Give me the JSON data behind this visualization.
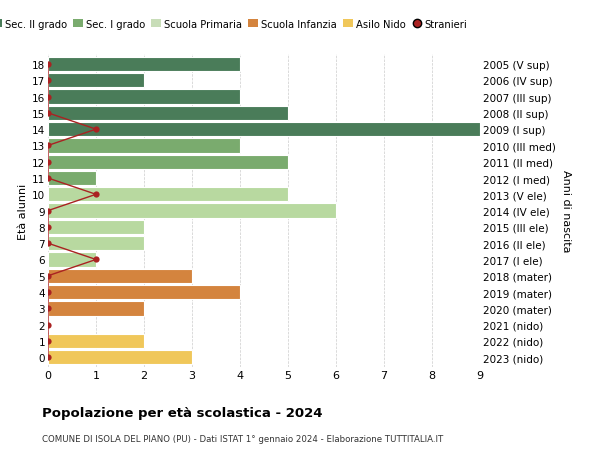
{
  "ages": [
    18,
    17,
    16,
    15,
    14,
    13,
    12,
    11,
    10,
    9,
    8,
    7,
    6,
    5,
    4,
    3,
    2,
    1,
    0
  ],
  "years": [
    "2005 (V sup)",
    "2006 (IV sup)",
    "2007 (III sup)",
    "2008 (II sup)",
    "2009 (I sup)",
    "2010 (III med)",
    "2011 (II med)",
    "2012 (I med)",
    "2013 (V ele)",
    "2014 (IV ele)",
    "2015 (III ele)",
    "2016 (II ele)",
    "2017 (I ele)",
    "2018 (mater)",
    "2019 (mater)",
    "2020 (mater)",
    "2021 (nido)",
    "2022 (nido)",
    "2023 (nido)"
  ],
  "bar_values": [
    4,
    2,
    4,
    5,
    9,
    4,
    5,
    1,
    5,
    6,
    2,
    2,
    1,
    3,
    4,
    2,
    0,
    2,
    3
  ],
  "bar_colors": [
    "#4a7c59",
    "#4a7c59",
    "#4a7c59",
    "#4a7c59",
    "#4a7c59",
    "#7aab6e",
    "#7aab6e",
    "#7aab6e",
    "#b8d9a0",
    "#b8d9a0",
    "#b8d9a0",
    "#b8d9a0",
    "#b8d9a0",
    "#d4843e",
    "#d4843e",
    "#d4843e",
    "#f0c75a",
    "#f0c75a",
    "#f0c75a"
  ],
  "stranieri_dot_x": [
    0,
    0,
    0,
    0,
    1,
    0,
    0,
    0,
    1,
    0,
    0,
    0,
    1,
    0,
    0,
    0,
    0,
    0,
    0
  ],
  "title": "Popolazione per età scolastica - 2024",
  "subtitle": "COMUNE DI ISOLA DEL PIANO (PU) - Dati ISTAT 1° gennaio 2024 - Elaborazione TUTTITALIA.IT",
  "ylabel_left": "Età alunni",
  "ylabel_right": "Anni di nascita",
  "xlim": [
    0,
    9
  ],
  "legend_labels": [
    "Sec. II grado",
    "Sec. I grado",
    "Scuola Primaria",
    "Scuola Infanzia",
    "Asilo Nido",
    "Stranieri"
  ],
  "legend_colors": [
    "#4a7c59",
    "#7aab6e",
    "#c8ddb8",
    "#d4843e",
    "#f0c75a",
    "#cc2222"
  ],
  "stranieri_color": "#aa2222",
  "background_color": "#ffffff",
  "grid_color": "#cccccc"
}
